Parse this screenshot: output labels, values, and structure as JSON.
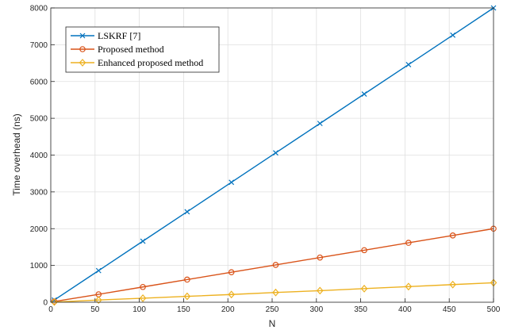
{
  "chart_data": {
    "type": "line",
    "xlabel": "N",
    "ylabel": "Time overhead (ns)",
    "xlim": [
      0,
      500
    ],
    "ylim": [
      0,
      8000
    ],
    "x_ticks": [
      0,
      50,
      100,
      150,
      200,
      250,
      300,
      350,
      400,
      450,
      500
    ],
    "y_ticks": [
      0,
      1000,
      2000,
      3000,
      4000,
      5000,
      6000,
      7000,
      8000
    ],
    "grid": true,
    "legend_position": "top-left",
    "x": [
      4,
      54,
      104,
      154,
      204,
      254,
      304,
      354,
      404,
      454,
      500
    ],
    "series": [
      {
        "name": "LSKRF [7]",
        "color": "#0072bd",
        "marker": "x",
        "values": [
          60,
          860,
          1660,
          2460,
          3260,
          4060,
          4860,
          5660,
          6460,
          7260,
          8000
        ]
      },
      {
        "name": "Proposed method",
        "color": "#d95319",
        "marker": "circle",
        "values": [
          20,
          215,
          415,
          615,
          815,
          1015,
          1215,
          1415,
          1615,
          1815,
          2000
        ]
      },
      {
        "name": "Enhanced proposed method",
        "color": "#edb120",
        "marker": "diamond",
        "values": [
          5,
          60,
          110,
          160,
          210,
          265,
          315,
          370,
          425,
          480,
          530
        ]
      }
    ]
  }
}
